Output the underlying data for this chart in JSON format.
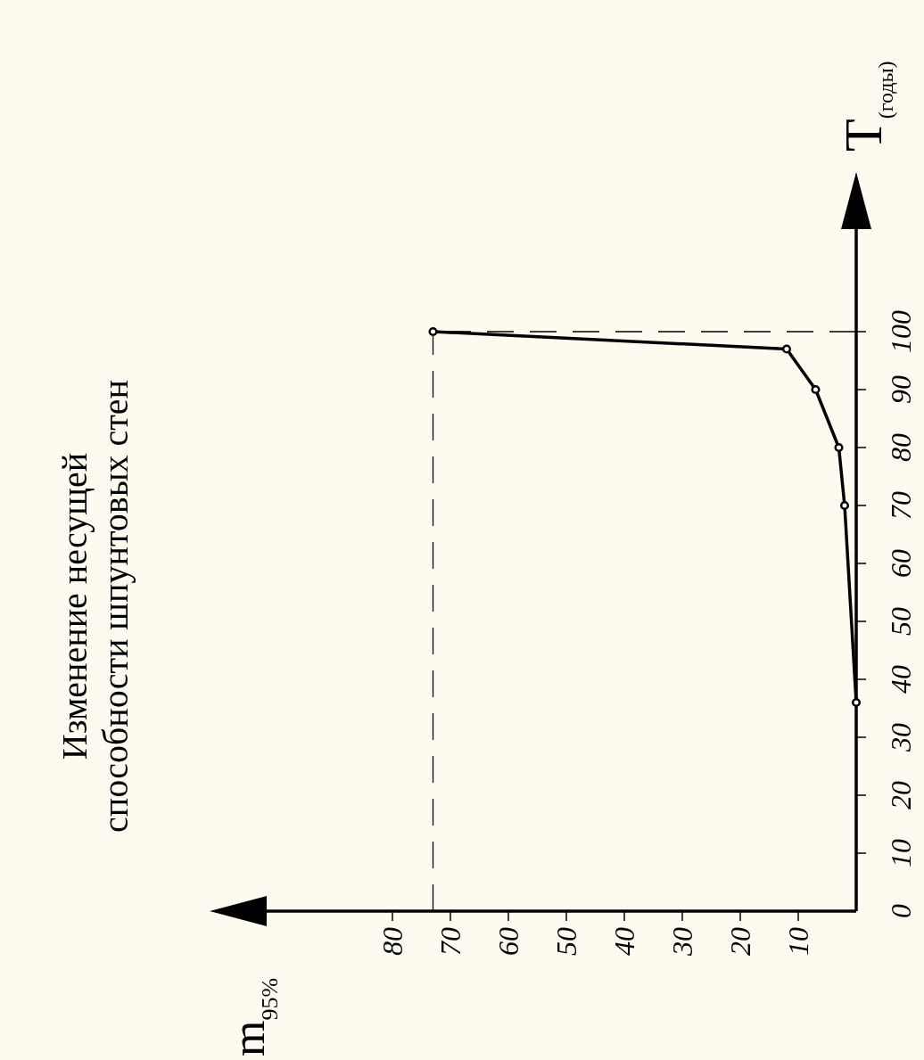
{
  "chart_data": {
    "type": "line",
    "title": "Изменение несущей\nспособности шпунтовых стен",
    "annotations": [
      "m$_{95%}$"
    ],
    "ylabel": "T$_{(годы)}$",
    "x": [
      73,
      12,
      7,
      3,
      2,
      0
    ],
    "series": [
      {
        "color": "#000000",
        "values": [
          100,
          97,
          90,
          80,
          70,
          36
        ]
      }
    ],
    "xlim": [
      102,
      0
    ],
    "ylim": [
      0,
      118
    ],
    "xticks": [
      80,
      70,
      60,
      50,
      40,
      30,
      20,
      10
    ],
    "yticks": [
      0,
      10,
      20,
      30,
      40,
      50,
      60,
      70,
      80,
      90,
      100
    ],
    "ref_lines": [
      {
        "axis": "y",
        "value": 100,
        "line_style": "dashed",
        "color": "#000000"
      },
      {
        "axis": "x",
        "value": 73,
        "line_style": "dashed",
        "color": "#000000"
      }
    ],
    "marker": "circle",
    "line_style": "solid",
    "grid": false
  }
}
